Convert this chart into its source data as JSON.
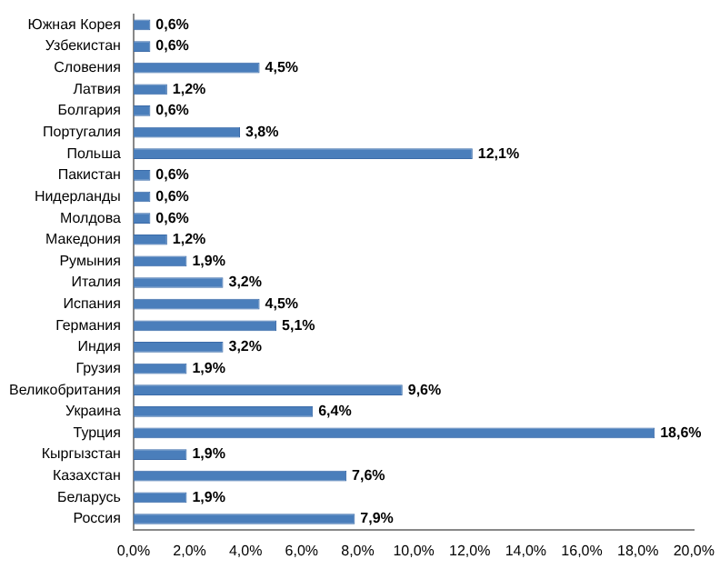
{
  "chart_data": {
    "type": "bar",
    "orientation": "horizontal",
    "categories": [
      "Южная Корея",
      "Узбекистан",
      "Словения",
      "Латвия",
      "Болгария",
      "Португалия",
      "Польша",
      "Пакистан",
      "Нидерланды",
      "Молдова",
      "Македония",
      "Румыния",
      "Италия",
      "Испания",
      "Германия",
      "Индия",
      "Грузия",
      "Великобритания",
      "Украина",
      "Турция",
      "Кыргызстан",
      "Казахстан",
      "Беларусь",
      "Россия"
    ],
    "values": [
      0.6,
      0.6,
      4.5,
      1.2,
      0.6,
      3.8,
      12.1,
      0.6,
      0.6,
      0.6,
      1.2,
      1.9,
      3.2,
      4.5,
      5.1,
      3.2,
      1.9,
      9.6,
      6.4,
      18.6,
      1.9,
      7.6,
      1.9,
      7.9
    ],
    "value_labels": [
      "0,6%",
      "0,6%",
      "4,5%",
      "1,2%",
      "0,6%",
      "3,8%",
      "12,1%",
      "0,6%",
      "0,6%",
      "0,6%",
      "1,2%",
      "1,9%",
      "3,2%",
      "4,5%",
      "5,1%",
      "3,2%",
      "1,9%",
      "9,6%",
      "6,4%",
      "18,6%",
      "1,9%",
      "7,6%",
      "1,9%",
      "7,9%"
    ],
    "color": "#4a7ebb",
    "xlim": [
      0,
      20
    ],
    "xticks": [
      {
        "value": 0,
        "label": "0,0%"
      },
      {
        "value": 2,
        "label": "2,0%"
      },
      {
        "value": 4,
        "label": "4,0%"
      },
      {
        "value": 6,
        "label": "6,0%"
      },
      {
        "value": 8,
        "label": "8,0%"
      },
      {
        "value": 10,
        "label": "10,0%"
      },
      {
        "value": 12,
        "label": "12,0%"
      },
      {
        "value": 14,
        "label": "14,0%"
      },
      {
        "value": 16,
        "label": "16,0%"
      },
      {
        "value": 18,
        "label": "18,0%"
      },
      {
        "value": 20,
        "label": "20,0%"
      }
    ],
    "grid": false,
    "legend": false
  }
}
